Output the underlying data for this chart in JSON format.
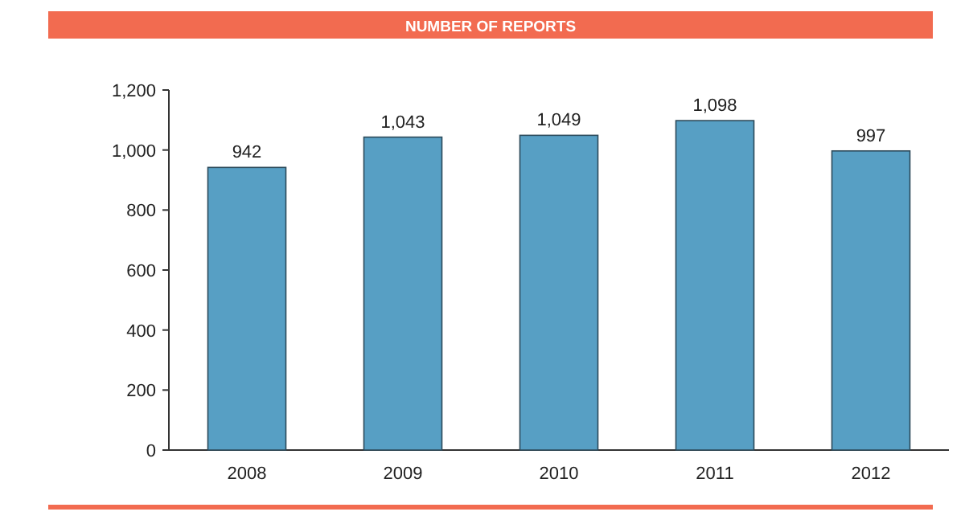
{
  "chart_data": {
    "type": "bar",
    "title": "NUMBER OF REPORTS",
    "categories": [
      "2008",
      "2009",
      "2010",
      "2011",
      "2012"
    ],
    "values": [
      942,
      1043,
      1049,
      1098,
      997
    ],
    "color": "#579fc4",
    "ylim": [
      0,
      1200
    ],
    "yticks": [
      {
        "value": 0,
        "label": "0"
      },
      {
        "value": 200,
        "label": "200"
      },
      {
        "value": 400,
        "label": "400"
      },
      {
        "value": 600,
        "label": "600"
      },
      {
        "value": 800,
        "label": "800"
      },
      {
        "value": 1000,
        "label": "1,000"
      },
      {
        "value": 1200,
        "label": "1,200"
      }
    ],
    "value_labels": [
      "942",
      "1,043",
      "1,049",
      "1,098",
      "997"
    ]
  }
}
